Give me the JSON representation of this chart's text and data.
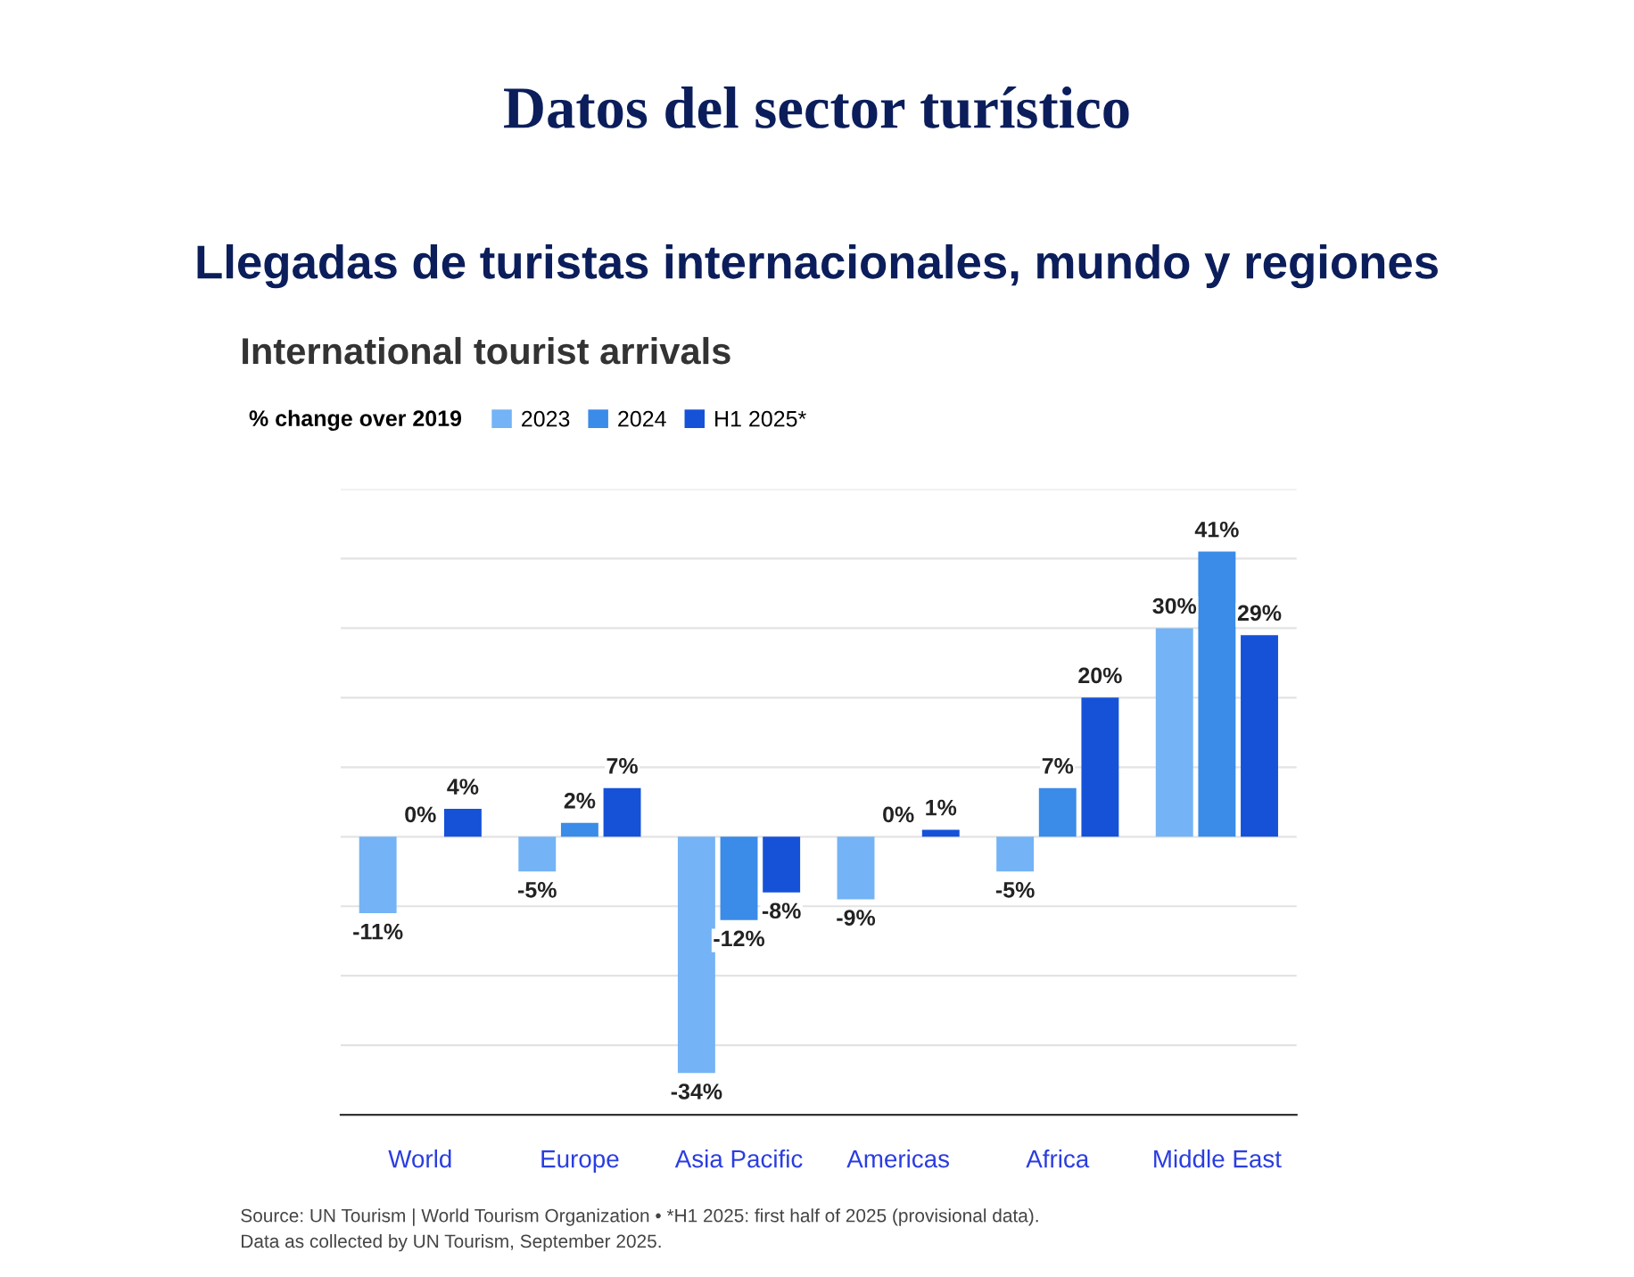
{
  "chart_data": {
    "type": "bar",
    "title": "Datos del sector turístico",
    "subtitle": "Llegadas de turistas internacionales, mundo y regiones",
    "categories": [
      "World",
      "Europe",
      "Asia Pacific",
      "Americas",
      "Africa",
      "Middle East"
    ],
    "series": [
      {
        "name": "2023",
        "color": "#74b3f5",
        "values": [
          -11,
          -5,
          -34,
          -9,
          -5,
          30
        ],
        "value_labels": [
          "-11%",
          "-5%",
          "-34%",
          "-9%",
          "-5%",
          "30%"
        ]
      },
      {
        "name": "2024",
        "color": "#3b8be8",
        "values": [
          0,
          2,
          -12,
          0,
          7,
          41
        ],
        "value_labels": [
          "0%",
          "2%",
          "-12%",
          "0%",
          "7%",
          "41%"
        ]
      },
      {
        "name": "H1 2025*",
        "color": "#1652d8",
        "values": [
          4,
          7,
          -8,
          1,
          20,
          29
        ],
        "value_labels": [
          "4%",
          "7%",
          "-8%",
          "1%",
          "20%",
          "29%"
        ]
      }
    ],
    "legend_title": "% change over 2019",
    "legend": "top left",
    "ylim": [
      -40,
      50
    ],
    "yticks": [
      {
        "value": -40,
        "label": null
      },
      {
        "value": -30,
        "label": null
      },
      {
        "value": -20,
        "label": null
      },
      {
        "value": -10,
        "label": null
      },
      {
        "value": 0,
        "label": null
      },
      {
        "value": 10,
        "label": null
      },
      {
        "value": 20,
        "label": null
      },
      {
        "value": 30,
        "label": null
      },
      {
        "value": 40,
        "label": null
      },
      {
        "value": 50,
        "label": null
      }
    ],
    "grid": "y",
    "tick_labels": "x",
    "annotations": [
      "International tourist arrivals",
      "Source: UN Tourism | World Tourism Organization • *H1 2025: first half of 2025 (provisional data).",
      "Data as collected by UN Tourism, September 2025."
    ]
  }
}
